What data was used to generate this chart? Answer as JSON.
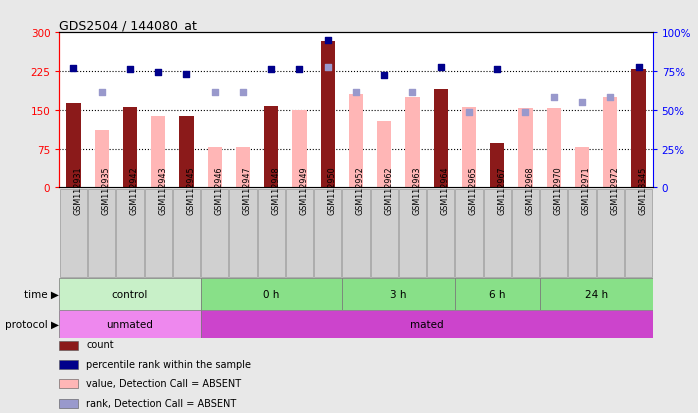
{
  "title": "GDS2504 / 144080_at",
  "samples": [
    "GSM112931",
    "GSM112935",
    "GSM112942",
    "GSM112943",
    "GSM112945",
    "GSM112946",
    "GSM112947",
    "GSM112948",
    "GSM112949",
    "GSM112950",
    "GSM112952",
    "GSM112962",
    "GSM112963",
    "GSM112964",
    "GSM112965",
    "GSM112967",
    "GSM112968",
    "GSM112970",
    "GSM112971",
    "GSM112972",
    "GSM113345"
  ],
  "count_present": [
    163,
    null,
    155,
    null,
    137,
    null,
    null,
    157,
    null,
    283,
    null,
    null,
    null,
    190,
    null,
    85,
    null,
    null,
    null,
    null,
    228
  ],
  "count_absent": [
    null,
    110,
    null,
    137,
    null,
    78,
    78,
    null,
    150,
    null,
    180,
    128,
    175,
    null,
    155,
    null,
    153,
    153,
    78,
    175,
    null
  ],
  "pct_present": [
    230,
    null,
    228,
    223,
    220,
    null,
    null,
    228,
    228,
    285,
    null,
    218,
    null,
    232,
    null,
    228,
    null,
    null,
    null,
    null,
    232
  ],
  "pct_absent": [
    null,
    185,
    null,
    null,
    null,
    185,
    185,
    null,
    null,
    232,
    185,
    null,
    185,
    null,
    145,
    null,
    145,
    175,
    165,
    175,
    null
  ],
  "bar_color_present": "#8b1a1a",
  "bar_color_absent": "#ffb6b6",
  "dot_color_present": "#00008b",
  "dot_color_absent": "#9999cc",
  "yticks_left": [
    0,
    75,
    150,
    225,
    300
  ],
  "ytick_labels_left": [
    "0",
    "75",
    "150",
    "225",
    "300"
  ],
  "ytick_labels_right": [
    "0",
    "25%",
    "50%",
    "75%",
    "100%"
  ],
  "grid_lines": [
    75,
    150,
    225
  ],
  "ylim_max": 300,
  "time_groups": [
    {
      "label": "control",
      "start": 0,
      "end": 5,
      "color": "#c8f0c8"
    },
    {
      "label": "0 h",
      "start": 5,
      "end": 10,
      "color": "#88e088"
    },
    {
      "label": "3 h",
      "start": 10,
      "end": 14,
      "color": "#88e088"
    },
    {
      "label": "6 h",
      "start": 14,
      "end": 17,
      "color": "#88e088"
    },
    {
      "label": "24 h",
      "start": 17,
      "end": 21,
      "color": "#88e088"
    }
  ],
  "protocol_groups": [
    {
      "label": "unmated",
      "start": 0,
      "end": 5,
      "color": "#ee88ee"
    },
    {
      "label": "mated",
      "start": 5,
      "end": 21,
      "color": "#cc44cc"
    }
  ],
  "legend_items": [
    {
      "color": "#8b1a1a",
      "label": "count"
    },
    {
      "color": "#00008b",
      "label": "percentile rank within the sample"
    },
    {
      "color": "#ffb6b6",
      "label": "value, Detection Call = ABSENT"
    },
    {
      "color": "#9999cc",
      "label": "rank, Detection Call = ABSENT"
    }
  ],
  "fig_facecolor": "#e8e8e8",
  "plot_facecolor": "#ffffff",
  "label_bg_color": "#d0d0d0"
}
